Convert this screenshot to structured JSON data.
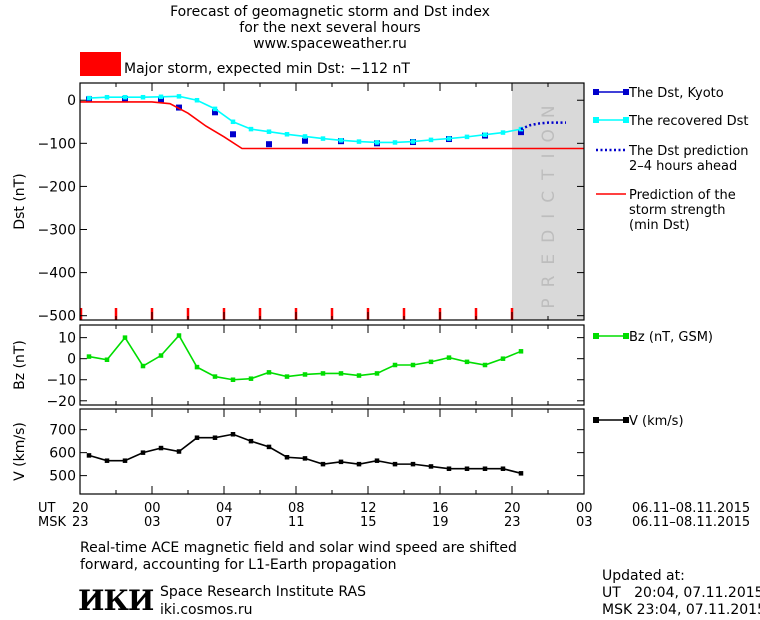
{
  "header": {
    "title_lines": [
      "Forecast of geomagnetic storm and Dst index",
      "for the next several hours",
      "www.spaceweather.ru"
    ],
    "storm_label": "Major storm, expected min Dst: −112 nT",
    "storm_color": "#ff0000"
  },
  "footer": {
    "note_lines": [
      "Real-time ACE magnetic field and solar wind speed are shifted",
      "forward, accounting for L1-Earth propagation"
    ],
    "institute": "Space Research Institute RAS",
    "site": "iki.cosmos.ru",
    "logo_text": "ИКИ",
    "updated_title": "Updated at:",
    "updated_ut": "UT   20:04, 07.11.2015",
    "updated_msk": "MSK 23:04, 07.11.2015"
  },
  "time_axis": {
    "ut_label": "UT",
    "msk_label": "MSK",
    "ut_ticks": [
      "20",
      "00",
      "04",
      "08",
      "12",
      "16",
      "20",
      "00"
    ],
    "msk_ticks": [
      "23",
      "03",
      "07",
      "11",
      "15",
      "19",
      "23",
      "03"
    ],
    "ut_range": "06.11–08.11.2015",
    "msk_range": "06.11–08.11.2015"
  },
  "chart_data": [
    {
      "type": "line",
      "ylabel": "Dst (nT)",
      "ylim": [
        -510,
        40
      ],
      "yticks": [
        0,
        -100,
        -200,
        -300,
        -400,
        -500
      ],
      "x_unit": "hours since 20 UT 06.11.2015",
      "xlim": [
        0,
        28
      ],
      "prediction_band": {
        "x0": 24,
        "x1": 28,
        "label": "PREDICTION",
        "color": "#d9d9d9"
      },
      "storm_tick_hours": [
        2,
        4,
        6,
        8,
        10,
        12,
        14,
        16,
        18,
        20,
        22,
        24
      ],
      "series": [
        {
          "name": "The Dst, Kyoto",
          "color": "#0000cc",
          "marker": "square",
          "x": [
            0.5,
            2.5,
            4.5,
            5.5,
            7.5,
            8.5,
            10.5,
            12.5,
            14.5,
            16.5,
            18.5,
            20.5,
            22.5,
            24.5
          ],
          "y": [
            2,
            3,
            2,
            -17,
            -28,
            -79,
            -102,
            -94,
            -95,
            -100,
            -97,
            -90,
            -82,
            -74
          ]
        },
        {
          "name": "The recovered Dst",
          "color": "#00ffff",
          "marker": "square",
          "x": [
            0.5,
            1.5,
            2.5,
            3.5,
            4.5,
            5.5,
            6.5,
            7.5,
            8.5,
            9.5,
            10.5,
            11.5,
            12.5,
            13.5,
            14.5,
            15.5,
            16.5,
            17.5,
            18.5,
            19.5,
            20.5,
            21.5,
            22.5,
            23.5,
            24.5
          ],
          "y": [
            5,
            7,
            7,
            7,
            8,
            9,
            0,
            -20,
            -50,
            -67,
            -73,
            -79,
            -84,
            -89,
            -93,
            -96,
            -98,
            -98,
            -96,
            -92,
            -89,
            -85,
            -80,
            -75,
            -67
          ]
        },
        {
          "name": "The Dst prediction\n2–4 hours ahead",
          "color": "#0000cc",
          "style": "dotted",
          "x": [
            24.5,
            25,
            25.5,
            26,
            26.5,
            27
          ],
          "y": [
            -67,
            -58,
            -54,
            -52,
            -52,
            -52
          ]
        },
        {
          "name": "Prediction of the\nstorm strength\n(min Dst)",
          "color": "#ff0000",
          "style": "solid",
          "x": [
            0,
            4,
            5,
            6,
            7,
            8,
            9,
            28
          ],
          "y": [
            -4,
            -4,
            -8,
            -30,
            -60,
            -85,
            -112,
            -112
          ]
        }
      ]
    },
    {
      "type": "line",
      "ylabel": "Bz (nT)",
      "ylim": [
        -22,
        16
      ],
      "yticks": [
        10,
        0,
        -10,
        -20
      ],
      "xlim": [
        0,
        28
      ],
      "series": [
        {
          "name": "Bz (nT, GSM)",
          "color": "#00dd00",
          "marker": "square",
          "x": [
            0.5,
            1.5,
            2.5,
            3.5,
            4.5,
            5.5,
            6.5,
            7.5,
            8.5,
            9.5,
            10.5,
            11.5,
            12.5,
            13.5,
            14.5,
            15.5,
            16.5,
            17.5,
            18.5,
            19.5,
            20.5,
            21.5,
            22.5,
            23.5,
            24.5
          ],
          "y": [
            1,
            -0.5,
            10,
            -3.5,
            1.5,
            11,
            -4,
            -8.5,
            -10,
            -9.5,
            -6.5,
            -8.5,
            -7.5,
            -7,
            -7,
            -8,
            -7,
            -3,
            -3,
            -1.5,
            0.5,
            -1.5,
            -3,
            0,
            3.5
          ]
        }
      ]
    },
    {
      "type": "line",
      "ylabel": "V (km/s)",
      "ylim": [
        420,
        790
      ],
      "yticks": [
        500,
        600,
        700
      ],
      "xlim": [
        0,
        28
      ],
      "series": [
        {
          "name": "V (km/s)",
          "color": "#000000",
          "marker": "square",
          "x": [
            0.5,
            1.5,
            2.5,
            3.5,
            4.5,
            5.5,
            6.5,
            7.5,
            8.5,
            9.5,
            10.5,
            11.5,
            12.5,
            13.5,
            14.5,
            15.5,
            16.5,
            17.5,
            18.5,
            19.5,
            20.5,
            21.5,
            22.5,
            23.5,
            24.5
          ],
          "y": [
            588,
            565,
            565,
            600,
            620,
            605,
            665,
            665,
            680,
            650,
            625,
            580,
            575,
            550,
            560,
            550,
            565,
            550,
            550,
            540,
            530,
            530,
            530,
            530,
            510
          ]
        }
      ]
    }
  ]
}
